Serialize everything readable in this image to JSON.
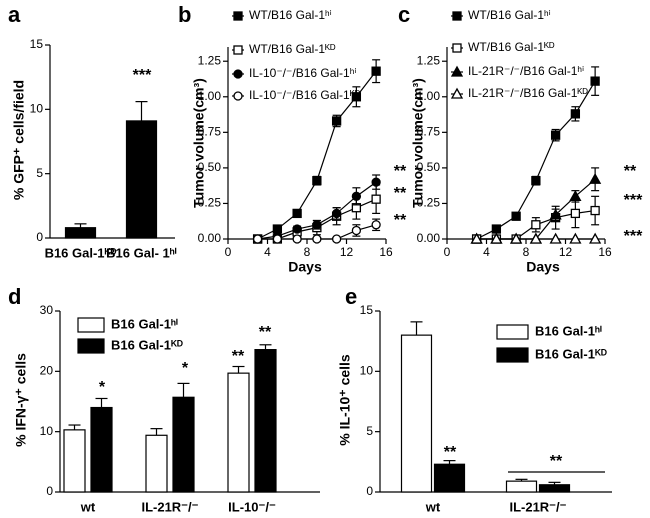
{
  "chart_data": [
    {
      "type": "bar",
      "panel": "a",
      "ylabel": "% GFP⁺ cells/field",
      "categories": [
        "B16 Gal-1ᴷᴰ",
        "B16 Gal- 1ʰⁱ"
      ],
      "series": [
        {
          "color": "#000000",
          "values": [
            0.8,
            9.1
          ],
          "errors": [
            0.3,
            1.5
          ]
        }
      ],
      "ylim": [
        0,
        15
      ],
      "yticks": [
        0,
        5,
        10,
        15
      ],
      "annotations": [
        "***"
      ]
    },
    {
      "type": "line",
      "panel": "b",
      "ylabel": "Tumor volume(cm³)",
      "xlabel": "Days",
      "x": [
        3,
        5,
        7,
        9,
        11,
        13,
        15
      ],
      "series": [
        {
          "name": "WT/B16 Gal-1ʰⁱ",
          "color": "#000000",
          "marker": "square",
          "filled": true,
          "values": [
            0,
            0.07,
            0.18,
            0.41,
            0.83,
            1.0,
            1.18
          ],
          "errors": [
            0.01,
            0.02,
            0.02,
            0.03,
            0.04,
            0.07,
            0.08
          ]
        },
        {
          "name": "WT/B16 Gal-1ᴷᴰ",
          "color": "#000000",
          "marker": "square",
          "filled": false,
          "values": [
            0,
            0,
            0.05,
            0.08,
            0.16,
            0.22,
            0.28
          ],
          "errors": [
            0,
            0.01,
            0.03,
            0.05,
            0.06,
            0.08,
            0.1
          ]
        },
        {
          "name": "IL-10⁻/⁻/B16 Gal-1ʰⁱ",
          "color": "#000000",
          "marker": "circle",
          "filled": true,
          "values": [
            0,
            0.02,
            0.07,
            0.1,
            0.18,
            0.3,
            0.4
          ],
          "errors": [
            0,
            0.01,
            0.02,
            0.03,
            0.04,
            0.06,
            0.05
          ]
        },
        {
          "name": "IL-10⁻/⁻/B16 Gal-1ᴷᴰ",
          "color": "#000000",
          "marker": "circle",
          "filled": false,
          "values": [
            0,
            0,
            0,
            0,
            0,
            0.06,
            0.1
          ],
          "errors": [
            0,
            0,
            0,
            0,
            0,
            0.04,
            0.04
          ]
        }
      ],
      "xlim": [
        0,
        16
      ],
      "xticks": [
        0,
        4,
        8,
        12,
        16
      ],
      "ylim": [
        0,
        1.35
      ],
      "yticks": [
        {
          "value": 0,
          "label": "0.00"
        },
        0.25,
        {
          "value": 0.5,
          "label": "0.50"
        },
        0.75,
        {
          "value": 1,
          "label": "1.00"
        },
        1.25
      ],
      "annotations": [
        "**",
        "**",
        "**"
      ]
    },
    {
      "type": "line",
      "panel": "c",
      "ylabel": "Tumor volume(cm³)",
      "xlabel": "Days",
      "x": [
        3,
        5,
        7,
        9,
        11,
        13,
        15
      ],
      "series": [
        {
          "name": "WT/B16 Gal-1ʰⁱ",
          "color": "#000000",
          "marker": "square",
          "filled": true,
          "values": [
            0,
            0.07,
            0.16,
            0.41,
            0.73,
            0.88,
            1.11
          ],
          "errors": [
            0,
            0.01,
            0.02,
            0.03,
            0.04,
            0.05,
            0.1
          ]
        },
        {
          "name": "WT/B16 Gal-1ᴷᴰ",
          "color": "#000000",
          "marker": "square",
          "filled": false,
          "values": [
            0,
            0,
            0,
            0.1,
            0.15,
            0.18,
            0.2
          ],
          "errors": [
            0,
            0,
            0,
            0.05,
            0.08,
            0.1,
            0.1
          ]
        },
        {
          "name": "IL-21R⁻/⁻/B16 Gal-1ʰⁱ",
          "color": "#000000",
          "marker": "triangle",
          "filled": true,
          "values": [
            0,
            0,
            0,
            0,
            0.17,
            0.3,
            0.42
          ],
          "errors": [
            0,
            0,
            0,
            0,
            0.04,
            0.04,
            0.08
          ]
        },
        {
          "name": "IL-21R⁻/⁻/B16 Gal-1ᴷᴰ",
          "color": "#000000",
          "marker": "triangle",
          "filled": false,
          "values": [
            0,
            0,
            0,
            0,
            0,
            0,
            0
          ],
          "errors": [
            0,
            0,
            0,
            0,
            0,
            0,
            0
          ]
        }
      ],
      "xlim": [
        0,
        16
      ],
      "xticks": [
        0,
        4,
        8,
        12,
        16
      ],
      "ylim": [
        0,
        1.35
      ],
      "yticks": [
        {
          "value": 0,
          "label": "0.00"
        },
        0.25,
        {
          "value": 0.5,
          "label": "0.50"
        },
        0.75,
        {
          "value": 1,
          "label": "1.00"
        },
        1.25
      ],
      "annotations": [
        "**",
        "***",
        "***"
      ]
    },
    {
      "type": "bar",
      "panel": "d",
      "ylabel": "% IFN-γ⁺ cells",
      "categories": [
        "wt",
        "IL-21R⁻/⁻",
        "IL-10⁻/⁻"
      ],
      "series": [
        {
          "name": "B16 Gal-1ʰⁱ",
          "color": "#ffffff",
          "values": [
            10.3,
            9.4,
            19.7
          ],
          "errors": [
            0.8,
            1.1,
            1.1
          ]
        },
        {
          "name": "B16 Gal-1ᴷᴰ",
          "color": "#000000",
          "values": [
            14.0,
            15.7,
            23.6
          ],
          "errors": [
            1.5,
            2.3,
            0.8
          ]
        }
      ],
      "ylim": [
        0,
        30
      ],
      "yticks": [
        0,
        10,
        20,
        30
      ],
      "annotations": [
        "*",
        "*",
        "**",
        "**"
      ]
    },
    {
      "type": "bar",
      "panel": "e",
      "ylabel": "% IL-10⁺ cells",
      "categories": [
        "wt",
        "IL-21R⁻/⁻"
      ],
      "series": [
        {
          "name": "B16 Gal-1ʰⁱ",
          "color": "#ffffff",
          "values": [
            13.0,
            0.9
          ],
          "errors": [
            1.1,
            0.15
          ]
        },
        {
          "name": "B16 Gal-1ᴷᴰ",
          "color": "#000000",
          "values": [
            2.3,
            0.6
          ],
          "errors": [
            0.3,
            0.2
          ]
        }
      ],
      "ylim": [
        0,
        15
      ],
      "yticks": [
        0,
        5,
        10,
        15
      ],
      "annotations": [
        "**",
        "**"
      ]
    }
  ]
}
